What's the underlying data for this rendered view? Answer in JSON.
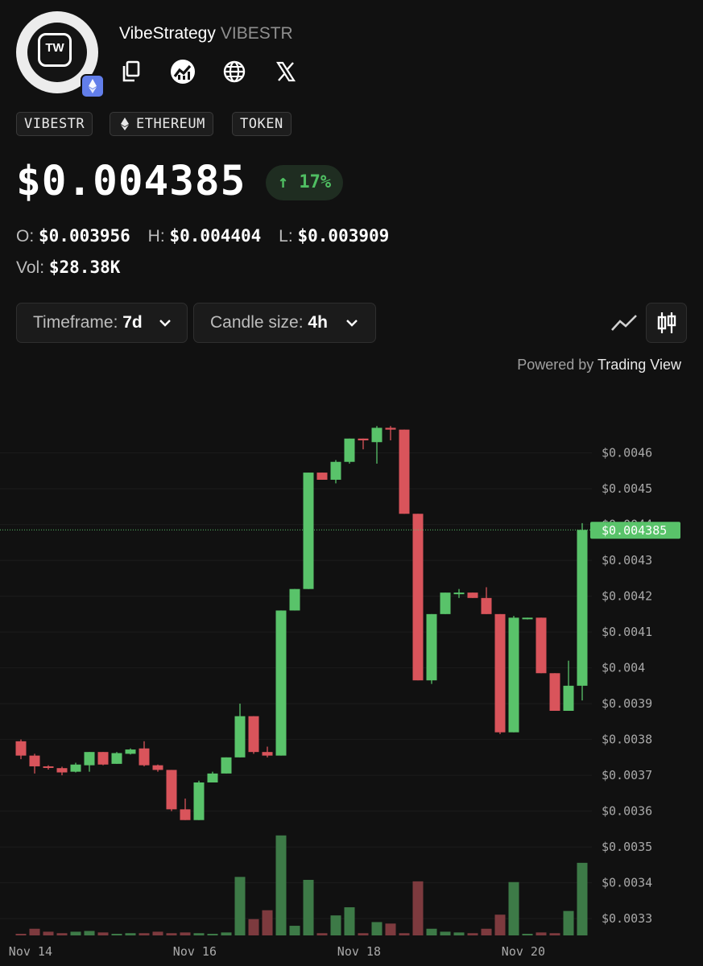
{
  "token": {
    "name": "VibeStrategy",
    "symbol": "VIBESTR",
    "logo_text": "TW",
    "chain_icon": "ethereum-icon",
    "tags": [
      "VIBESTR",
      "ETHEREUM",
      "TOKEN"
    ],
    "price": "$0.004385",
    "change": "↑ 17%",
    "open_label": "O:",
    "open": "$0.003956",
    "high_label": "H:",
    "high": "$0.004404",
    "low_label": "L:",
    "low": "$0.003909",
    "vol_label": "Vol:",
    "volume": "$28.38K"
  },
  "icons": [
    "copy-icon",
    "dex-chart-icon",
    "globe-icon",
    "x-logo-icon"
  ],
  "controls": {
    "timeframe_label": "Timeframe:",
    "timeframe_value": "7d",
    "candle_label": "Candle size:",
    "candle_value": "4h",
    "powered_prefix": "Powered by",
    "powered_brand": "Trading View"
  },
  "colors": {
    "up": "#59c36a",
    "down": "#d9545b",
    "up_vol": "#3d7a47",
    "down_vol": "#7d3a3e",
    "accent_badge": "#627eea"
  },
  "chart_data": {
    "type": "candlestick",
    "x_ticks": [
      {
        "label": "Nov 14",
        "index": 0.7
      },
      {
        "label": "Nov 16",
        "index": 12.7
      },
      {
        "label": "Nov 18",
        "index": 24.7
      },
      {
        "label": "Nov 20",
        "index": 36.7
      }
    ],
    "y_ticks": [
      {
        "value": 0.0046,
        "label": "$0.0046"
      },
      {
        "value": 0.0045,
        "label": "$0.0045"
      },
      {
        "value": 0.0044,
        "label": "$0.0044"
      },
      {
        "value": 0.0043,
        "label": "$0.0043"
      },
      {
        "value": 0.0042,
        "label": "$0.0042"
      },
      {
        "value": 0.0041,
        "label": "$0.0041"
      },
      {
        "value": 0.004,
        "label": "$0.004"
      },
      {
        "value": 0.0039,
        "label": "$0.0039"
      },
      {
        "value": 0.0038,
        "label": "$0.0038"
      },
      {
        "value": 0.0037,
        "label": "$0.0037"
      },
      {
        "value": 0.0036,
        "label": "$0.0036"
      },
      {
        "value": 0.0035,
        "label": "$0.0035"
      },
      {
        "value": 0.0034,
        "label": "$0.0034"
      },
      {
        "value": 0.0033,
        "label": "$0.0033"
      }
    ],
    "ylim": [
      0.00328,
      0.00468
    ],
    "last_price": 0.004385,
    "last_price_label": "$0.004385",
    "candles": [
      {
        "o": 0.003795,
        "h": 0.0038,
        "l": 0.003745,
        "c": 0.003755,
        "v": 0.2
      },
      {
        "o": 0.003755,
        "h": 0.00376,
        "l": 0.003705,
        "c": 0.003725,
        "v": 0.9
      },
      {
        "o": 0.003725,
        "h": 0.003728,
        "l": 0.003716,
        "c": 0.003722,
        "v": 0.5
      },
      {
        "o": 0.00372,
        "h": 0.003724,
        "l": 0.0037,
        "c": 0.003708,
        "v": 0.3
      },
      {
        "o": 0.00371,
        "h": 0.003735,
        "l": 0.003708,
        "c": 0.00373,
        "v": 0.5
      },
      {
        "o": 0.003728,
        "h": 0.003765,
        "l": 0.00371,
        "c": 0.003765,
        "v": 0.6
      },
      {
        "o": 0.003765,
        "h": 0.003765,
        "l": 0.003728,
        "c": 0.00373,
        "v": 0.4
      },
      {
        "o": 0.003732,
        "h": 0.003765,
        "l": 0.003732,
        "c": 0.003762,
        "v": 0.2
      },
      {
        "o": 0.00376,
        "h": 0.003775,
        "l": 0.003758,
        "c": 0.003772,
        "v": 0.3
      },
      {
        "o": 0.003775,
        "h": 0.003795,
        "l": 0.003725,
        "c": 0.003728,
        "v": 0.3
      },
      {
        "o": 0.003728,
        "h": 0.00373,
        "l": 0.00371,
        "c": 0.003715,
        "v": 0.5
      },
      {
        "o": 0.003715,
        "h": 0.003715,
        "l": 0.0036,
        "c": 0.003605,
        "v": 0.3
      },
      {
        "o": 0.003605,
        "h": 0.003635,
        "l": 0.003575,
        "c": 0.003575,
        "v": 0.4
      },
      {
        "o": 0.003575,
        "h": 0.003685,
        "l": 0.003575,
        "c": 0.00368,
        "v": 0.3
      },
      {
        "o": 0.00368,
        "h": 0.00371,
        "l": 0.00368,
        "c": 0.003705,
        "v": 0.2
      },
      {
        "o": 0.003705,
        "h": 0.00375,
        "l": 0.003705,
        "c": 0.00375,
        "v": 0.4
      },
      {
        "o": 0.00375,
        "h": 0.0039,
        "l": 0.00375,
        "c": 0.003865,
        "v": 7.9
      },
      {
        "o": 0.003865,
        "h": 0.003865,
        "l": 0.00376,
        "c": 0.003765,
        "v": 2.2
      },
      {
        "o": 0.003765,
        "h": 0.00378,
        "l": 0.00375,
        "c": 0.003755,
        "v": 3.4
      },
      {
        "o": 0.003755,
        "h": 0.00416,
        "l": 0.003755,
        "c": 0.00416,
        "v": 13.5
      },
      {
        "o": 0.00416,
        "h": 0.00422,
        "l": 0.00416,
        "c": 0.00422,
        "v": 1.3
      },
      {
        "o": 0.00422,
        "h": 0.004545,
        "l": 0.00422,
        "c": 0.004545,
        "v": 7.5
      },
      {
        "o": 0.004545,
        "h": 0.004545,
        "l": 0.004525,
        "c": 0.004525,
        "v": 0.3
      },
      {
        "o": 0.004525,
        "h": 0.00458,
        "l": 0.004515,
        "c": 0.004575,
        "v": 2.7
      },
      {
        "o": 0.004575,
        "h": 0.00464,
        "l": 0.00457,
        "c": 0.00464,
        "v": 3.8
      },
      {
        "o": 0.00464,
        "h": 0.00464,
        "l": 0.00461,
        "c": 0.004635,
        "v": 0.3
      },
      {
        "o": 0.00463,
        "h": 0.004675,
        "l": 0.00457,
        "c": 0.00467,
        "v": 1.8
      },
      {
        "o": 0.00467,
        "h": 0.004675,
        "l": 0.004635,
        "c": 0.004665,
        "v": 1.6
      },
      {
        "o": 0.004665,
        "h": 0.004665,
        "l": 0.00443,
        "c": 0.00443,
        "v": 0.3
      },
      {
        "o": 0.00443,
        "h": 0.00443,
        "l": 0.003965,
        "c": 0.003965,
        "v": 7.3
      },
      {
        "o": 0.003965,
        "h": 0.00415,
        "l": 0.003955,
        "c": 0.00415,
        "v": 0.9
      },
      {
        "o": 0.00415,
        "h": 0.00421,
        "l": 0.00415,
        "c": 0.00421,
        "v": 0.5
      },
      {
        "o": 0.00421,
        "h": 0.00422,
        "l": 0.004195,
        "c": 0.00421,
        "v": 0.4
      },
      {
        "o": 0.00421,
        "h": 0.00421,
        "l": 0.004195,
        "c": 0.004195,
        "v": 0.3
      },
      {
        "o": 0.004195,
        "h": 0.004225,
        "l": 0.00415,
        "c": 0.00415,
        "v": 0.9
      },
      {
        "o": 0.00415,
        "h": 0.00415,
        "l": 0.003815,
        "c": 0.00382,
        "v": 2.8
      },
      {
        "o": 0.00382,
        "h": 0.004145,
        "l": 0.00382,
        "c": 0.00414,
        "v": 7.2
      },
      {
        "o": 0.00414,
        "h": 0.00414,
        "l": 0.004135,
        "c": 0.00414,
        "v": 0.2
      },
      {
        "o": 0.00414,
        "h": 0.00414,
        "l": 0.003985,
        "c": 0.003985,
        "v": 0.4
      },
      {
        "o": 0.003985,
        "h": 0.003985,
        "l": 0.00388,
        "c": 0.00388,
        "v": 0.3
      },
      {
        "o": 0.00388,
        "h": 0.00402,
        "l": 0.00388,
        "c": 0.00395,
        "v": 3.3
      },
      {
        "o": 0.00395,
        "h": 0.004404,
        "l": 0.003909,
        "c": 0.004385,
        "v": 9.8
      }
    ]
  }
}
